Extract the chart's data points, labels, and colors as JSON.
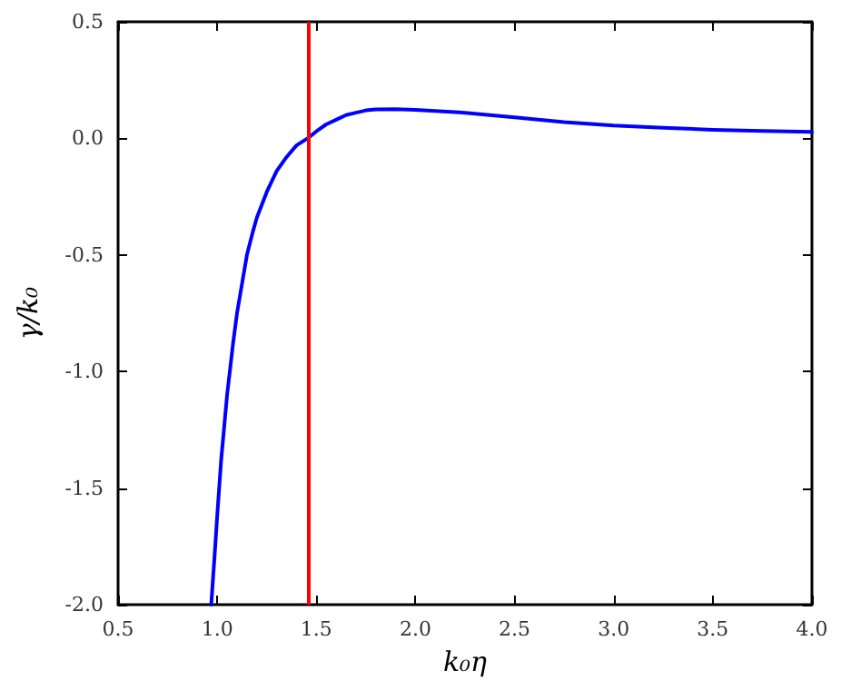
{
  "chart_data": {
    "type": "line",
    "xlabel": "k₀η",
    "ylabel": "γ/k₀",
    "x": [
      0.97,
      0.99,
      1.0,
      1.02,
      1.05,
      1.08,
      1.1,
      1.13,
      1.15,
      1.18,
      1.2,
      1.25,
      1.3,
      1.35,
      1.4,
      1.456,
      1.5,
      1.55,
      1.6,
      1.65,
      1.7,
      1.75,
      1.8,
      1.9,
      2.0,
      2.25,
      2.5,
      2.75,
      3.0,
      3.25,
      3.5,
      3.75,
      4.0
    ],
    "series": [
      {
        "color": "#0000ff",
        "values": [
          -2.0,
          -1.75,
          -1.62,
          -1.38,
          -1.1,
          -0.88,
          -0.75,
          -0.6,
          -0.5,
          -0.4,
          -0.34,
          -0.23,
          -0.14,
          -0.08,
          -0.03,
          0.0,
          0.03,
          0.06,
          0.08,
          0.1,
          0.11,
          0.12,
          0.124,
          0.125,
          0.122,
          0.11,
          0.09,
          0.07,
          0.055,
          0.045,
          0.037,
          0.032,
          0.028
        ]
      }
    ],
    "xlim": [
      0.5,
      4.0
    ],
    "xticks": [
      0.5,
      {
        "value": 1,
        "label": "1.0"
      },
      1.5,
      {
        "value": 2,
        "label": "2.0"
      },
      2.5,
      {
        "value": 3,
        "label": "3.0"
      },
      3.5,
      {
        "value": 4,
        "label": "4.0"
      }
    ],
    "ylim": [
      -2.0,
      0.5
    ],
    "yticks": [
      {
        "value": -2,
        "label": "-2.0"
      },
      -1.5,
      {
        "value": -1,
        "label": "-1.0"
      },
      -0.5,
      {
        "value": 0,
        "label": "0.0"
      },
      0.5
    ],
    "ref_lines": [
      {
        "axis": "x",
        "value": 1.46,
        "color": "#ff0000"
      }
    ],
    "grid": false,
    "marker": "none",
    "line_style": "solid"
  }
}
